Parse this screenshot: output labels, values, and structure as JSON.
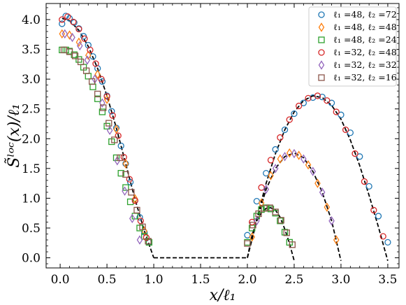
{
  "chart_data": {
    "type": "scatter",
    "xlabel": "x/ℓ₁",
    "ylabel": "S̃ˡᵒᶜ(x)/ℓ₁",
    "xlim": [
      -0.15,
      3.62
    ],
    "ylim": [
      -0.17,
      4.27
    ],
    "xticks": [
      0.0,
      0.5,
      1.0,
      1.5,
      2.0,
      2.5,
      3.0,
      3.5
    ],
    "xtick_labels": [
      "0.0",
      "0.5",
      "1.0",
      "1.5",
      "2.0",
      "2.5",
      "3.0",
      "3.5"
    ],
    "yticks": [
      0.0,
      0.5,
      1.0,
      1.5,
      2.0,
      2.5,
      3.0,
      3.5,
      4.0
    ],
    "ytick_labels": [
      "0.0",
      "0.5",
      "1.0",
      "1.5",
      "2.0",
      "2.5",
      "3.0",
      "3.5",
      "4.0"
    ],
    "grid": false,
    "legend_position": "top-right",
    "theory_curve": {
      "style": "black dashed",
      "segments": [
        {
          "x": [
            0.02,
            0.1,
            0.2,
            0.3,
            0.4,
            0.5,
            0.6,
            0.7,
            0.8,
            0.9,
            1.0
          ],
          "y": [
            4.02,
            3.98,
            3.82,
            3.55,
            3.18,
            2.72,
            2.18,
            1.58,
            0.98,
            0.45,
            0.0
          ]
        },
        {
          "x": [
            1.0,
            2.0
          ],
          "y": [
            0.0,
            0.0
          ]
        },
        {
          "x": [
            2.0,
            2.05,
            2.1,
            2.15,
            2.2,
            2.25,
            2.3,
            2.35,
            2.4,
            2.45,
            2.5
          ],
          "y": [
            0.0,
            0.38,
            0.62,
            0.76,
            0.83,
            0.84,
            0.8,
            0.68,
            0.48,
            0.24,
            -0.05
          ]
        },
        {
          "x": [
            2.0,
            2.1,
            2.2,
            2.3,
            2.4,
            2.5,
            2.6,
            2.7,
            2.8,
            2.9,
            3.0
          ],
          "y": [
            0.0,
            0.62,
            1.15,
            1.5,
            1.7,
            1.76,
            1.68,
            1.45,
            1.1,
            0.62,
            -0.05
          ]
        },
        {
          "x": [
            2.0,
            2.1,
            2.2,
            2.3,
            2.4,
            2.5,
            2.6,
            2.7,
            2.8,
            2.9,
            3.0,
            3.1,
            3.2,
            3.3,
            3.4,
            3.5
          ],
          "y": [
            0.0,
            0.65,
            1.25,
            1.75,
            2.15,
            2.45,
            2.64,
            2.72,
            2.69,
            2.56,
            2.33,
            1.98,
            1.55,
            1.05,
            0.52,
            -0.05
          ]
        }
      ]
    },
    "series": [
      {
        "name": "ℓ₁ =48, ℓ₂ =72",
        "marker": "circle",
        "color": "#1f77b4",
        "x": [
          0.02,
          0.06,
          0.1,
          0.15,
          0.2,
          0.25,
          0.3,
          0.35,
          0.4,
          0.45,
          0.5,
          0.55,
          0.6,
          0.65,
          0.7,
          0.75,
          0.8,
          0.85,
          0.9,
          0.95,
          2.0,
          2.1,
          2.2,
          2.3,
          2.4,
          2.5,
          2.6,
          2.7,
          2.8,
          2.9,
          3.0,
          3.1,
          3.2,
          3.3,
          3.4,
          3.5
        ],
        "y": [
          3.93,
          4.06,
          4.02,
          3.95,
          3.85,
          3.72,
          3.57,
          3.38,
          3.18,
          2.96,
          2.72,
          2.46,
          2.18,
          1.88,
          1.58,
          1.27,
          0.96,
          0.68,
          0.43,
          0.26,
          0.38,
          0.95,
          1.42,
          1.82,
          2.15,
          2.42,
          2.6,
          2.69,
          2.7,
          2.6,
          2.4,
          2.1,
          1.7,
          1.2,
          0.7,
          0.26
        ]
      },
      {
        "name": "ℓ₁ =48, ℓ₂ =48",
        "marker": "diamond",
        "color": "#ff7f0e",
        "x": [
          0.02,
          0.1,
          0.2,
          0.3,
          0.4,
          0.5,
          0.6,
          0.7,
          0.8,
          0.9,
          2.05,
          2.15,
          2.25,
          2.35,
          2.45,
          2.55,
          2.65,
          2.75,
          2.85,
          2.95
        ],
        "y": [
          3.76,
          3.74,
          3.62,
          3.4,
          3.08,
          2.66,
          2.16,
          1.58,
          0.99,
          0.45,
          0.35,
          0.92,
          1.38,
          1.66,
          1.76,
          1.72,
          1.56,
          1.25,
          0.85,
          0.3
        ]
      },
      {
        "name": "ℓ₁ =48, ℓ₂ =24",
        "marker": "square",
        "color": "#2ca02c",
        "x": [
          0.02,
          0.06,
          0.1,
          0.15,
          0.2,
          0.25,
          0.3,
          0.35,
          0.4,
          0.45,
          0.5,
          0.55,
          0.6,
          0.65,
          0.7,
          0.75,
          0.8,
          0.85,
          0.9,
          0.95,
          2.0,
          2.05,
          2.1,
          2.15,
          2.2,
          2.25,
          2.3,
          2.35,
          2.4,
          2.45
        ],
        "y": [
          3.49,
          3.49,
          3.47,
          3.41,
          3.33,
          3.2,
          3.05,
          2.87,
          2.67,
          2.45,
          2.21,
          1.95,
          1.68,
          1.42,
          1.18,
          0.94,
          0.7,
          0.5,
          0.36,
          0.26,
          0.26,
          0.5,
          0.7,
          0.81,
          0.84,
          0.82,
          0.75,
          0.62,
          0.43,
          0.26
        ]
      },
      {
        "name": "ℓ₁ =32, ℓ₂ =48",
        "marker": "circle",
        "color": "#d62728",
        "x": [
          0.02,
          0.08,
          0.14,
          0.2,
          0.26,
          0.32,
          0.38,
          0.44,
          0.5,
          0.56,
          0.62,
          0.68,
          0.74,
          0.8,
          0.86,
          0.92,
          2.05,
          2.15,
          2.25,
          2.35,
          2.45,
          2.55,
          2.65,
          2.75,
          2.85,
          2.95,
          3.05,
          3.15,
          3.25,
          3.35,
          3.45
        ],
        "y": [
          4.0,
          4.05,
          3.96,
          3.84,
          3.68,
          3.49,
          3.26,
          3.0,
          2.71,
          2.39,
          2.05,
          1.69,
          1.32,
          0.96,
          0.62,
          0.34,
          0.6,
          1.18,
          1.64,
          2.02,
          2.32,
          2.55,
          2.68,
          2.72,
          2.64,
          2.45,
          2.15,
          1.75,
          1.28,
          0.8,
          0.36
        ]
      },
      {
        "name": "ℓ₁ =32, ℓ₂ =32",
        "marker": "diamond",
        "color": "#9467bd",
        "x": [
          0.05,
          0.13,
          0.21,
          0.29,
          0.37,
          0.45,
          0.53,
          0.61,
          0.69,
          0.77,
          0.85,
          2.1,
          2.2,
          2.3,
          2.4,
          2.5,
          2.6,
          2.7,
          2.8,
          2.9
        ],
        "y": [
          3.76,
          3.7,
          3.56,
          3.32,
          3.0,
          2.6,
          2.14,
          1.63,
          1.12,
          0.66,
          0.3,
          0.62,
          1.15,
          1.5,
          1.7,
          1.75,
          1.66,
          1.45,
          1.1,
          0.62
        ]
      },
      {
        "name": "ℓ₁ =32, ℓ₂ =16",
        "marker": "square",
        "color": "#8c564b",
        "x": [
          0.04,
          0.1,
          0.16,
          0.22,
          0.28,
          0.34,
          0.4,
          0.46,
          0.52,
          0.58,
          0.64,
          0.7,
          0.76,
          0.82,
          0.88,
          0.94,
          2.0,
          2.06,
          2.12,
          2.18,
          2.24,
          2.3,
          2.36,
          2.42,
          2.48
        ],
        "y": [
          3.49,
          3.46,
          3.39,
          3.29,
          3.14,
          2.96,
          2.75,
          2.52,
          2.26,
          1.98,
          1.68,
          1.4,
          1.1,
          0.8,
          0.52,
          0.28,
          0.24,
          0.55,
          0.74,
          0.83,
          0.84,
          0.77,
          0.63,
          0.42,
          0.22
        ]
      }
    ]
  }
}
